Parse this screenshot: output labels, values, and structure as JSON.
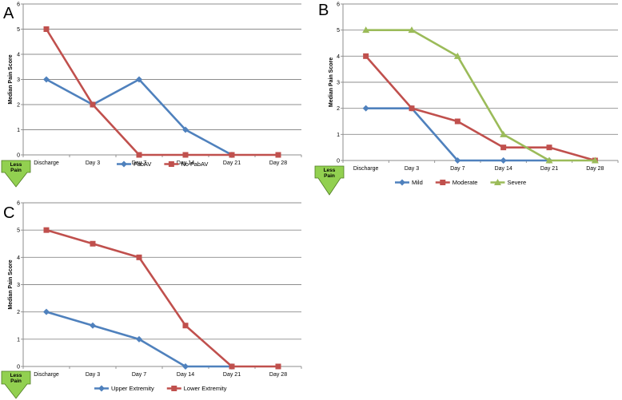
{
  "figure": {
    "less_pain_label": "Less Pain"
  },
  "chart_data": [
    {
      "panel": "A",
      "type": "line",
      "ylabel": "Median Pain Score",
      "xlabel": "",
      "categories": [
        "Discharge",
        "Day 3",
        "Day 7",
        "Day 14",
        "Day 21",
        "Day 28"
      ],
      "ylim": [
        0,
        6
      ],
      "yticks": [
        0,
        1,
        2,
        3,
        4,
        5,
        6
      ],
      "grid": true,
      "legend": "bottom",
      "series": [
        {
          "name": "FabAV",
          "color": "#4F81BD",
          "marker": "diamond",
          "values": [
            3,
            2,
            3,
            1,
            0,
            null
          ]
        },
        {
          "name": "No FabAV",
          "color": "#C0504D",
          "marker": "square",
          "values": [
            5,
            2,
            0,
            0,
            0,
            0
          ]
        }
      ]
    },
    {
      "panel": "B",
      "type": "line",
      "ylabel": "Median Pain Score",
      "xlabel": "",
      "categories": [
        "Discharge",
        "Day 3",
        "Day 7",
        "Day 14",
        "Day 21",
        "Day 28"
      ],
      "ylim": [
        0,
        6
      ],
      "yticks": [
        0,
        1,
        2,
        3,
        4,
        5,
        6
      ],
      "grid": true,
      "legend": "bottom",
      "series": [
        {
          "name": "Mild",
          "color": "#4F81BD",
          "marker": "diamond",
          "values": [
            2,
            2,
            0,
            0,
            0,
            null
          ]
        },
        {
          "name": "Moderate",
          "color": "#C0504D",
          "marker": "square",
          "values": [
            4,
            2,
            1.5,
            0.5,
            0.5,
            0
          ]
        },
        {
          "name": "Severe",
          "color": "#9BBB59",
          "marker": "triangle",
          "values": [
            5,
            5,
            4,
            1,
            0,
            0
          ]
        }
      ]
    },
    {
      "panel": "C",
      "type": "line",
      "ylabel": "Median Pain Score",
      "xlabel": "",
      "categories": [
        "Discharge",
        "Day 3",
        "Day 7",
        "Day 14",
        "Day 21",
        "Day 28"
      ],
      "ylim": [
        0,
        6
      ],
      "yticks": [
        0,
        1,
        2,
        3,
        4,
        5,
        6
      ],
      "grid": true,
      "legend": "bottom",
      "series": [
        {
          "name": "Upper Extremity",
          "color": "#4F81BD",
          "marker": "diamond",
          "values": [
            2,
            1.5,
            1,
            0,
            0,
            null
          ]
        },
        {
          "name": "Lower Extremity",
          "color": "#C0504D",
          "marker": "square",
          "values": [
            5,
            4.5,
            4,
            1.5,
            0,
            0
          ]
        }
      ]
    }
  ]
}
